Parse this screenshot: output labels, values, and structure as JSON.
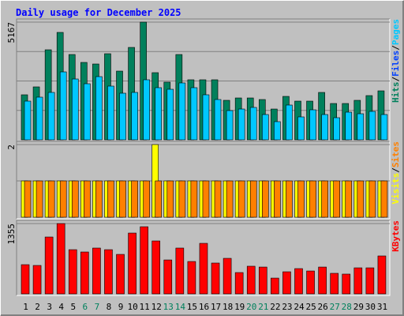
{
  "title": "Daily usage for December 2025",
  "title_color": "#0000ff",
  "chart_data": [
    {
      "type": "bar",
      "ylim": [
        0,
        5167
      ],
      "yticks": [
        5167
      ],
      "legend_separator": "/",
      "legend": [
        {
          "text": "Pages",
          "color": "#00c8ff"
        },
        {
          "text": "Files",
          "color": "#0040ff"
        },
        {
          "text": "Hits",
          "color": "#00805c"
        }
      ],
      "series": [
        {
          "name": "Hits",
          "color": "#00805c",
          "values": [
            1977,
            2324,
            3953,
            4716,
            3745,
            3398,
            3329,
            3780,
            3017,
            4057,
            5167,
            2948,
            2532,
            3745,
            2636,
            2636,
            2636,
            1734,
            1838,
            1838,
            1769,
            1352,
            1907,
            1699,
            1699,
            2081,
            1595,
            1595,
            1734,
            1942,
            2150
          ]
        },
        {
          "name": "Pages",
          "color": "#00c8ff",
          "values": [
            1699,
            1873,
            2081,
            2982,
            2670,
            2462,
            2774,
            2358,
            2046,
            2081,
            2636,
            2289,
            2219,
            2497,
            2289,
            1977,
            1769,
            1283,
            1352,
            1422,
            1110,
            798,
            1526,
            1006,
            1318,
            1110,
            971,
            1214,
            1144,
            1248,
            1110
          ]
        }
      ]
    },
    {
      "type": "bar",
      "ylim": [
        0,
        2
      ],
      "yticks": [
        2
      ],
      "legend_separator": "/",
      "legend": [
        {
          "text": "Sites",
          "color": "#ff8000"
        },
        {
          "text": "Visits",
          "color": "#ffff00"
        }
      ],
      "series": [
        {
          "name": "Visits",
          "color": "#ffff00",
          "values": [
            1,
            1,
            1,
            1,
            1,
            1,
            1,
            1,
            1,
            1,
            1,
            2,
            1,
            1,
            1,
            1,
            1,
            1,
            1,
            1,
            1,
            1,
            1,
            1,
            1,
            1,
            1,
            1,
            1,
            1,
            1
          ]
        },
        {
          "name": "Sites",
          "color": "#ff8000",
          "values": [
            1,
            1,
            1,
            1,
            1,
            1,
            1,
            1,
            1,
            1,
            1,
            1,
            1,
            1,
            1,
            1,
            1,
            1,
            1,
            1,
            1,
            1,
            1,
            1,
            1,
            1,
            1,
            1,
            1,
            1,
            1
          ]
        }
      ]
    },
    {
      "type": "bar",
      "ylim": [
        0,
        1355
      ],
      "yticks": [
        1355
      ],
      "legend": [
        {
          "text": "KBytes",
          "color": "#ff0000"
        }
      ],
      "series": [
        {
          "name": "KBytes",
          "color": "#ff0000",
          "values": [
            563,
            548,
            1096,
            1355,
            852,
            807,
            883,
            852,
            761,
            1172,
            1294,
            1020,
            654,
            883,
            624,
            974,
            594,
            685,
            411,
            533,
            517,
            304,
            426,
            487,
            441,
            517,
            396,
            381,
            502,
            502,
            731
          ]
        }
      ],
      "categories": [
        "1",
        "2",
        "3",
        "4",
        "5",
        "6",
        "7",
        "8",
        "9",
        "10",
        "11",
        "12",
        "13",
        "14",
        "15",
        "16",
        "17",
        "18",
        "19",
        "20",
        "21",
        "22",
        "23",
        "24",
        "25",
        "26",
        "27",
        "28",
        "29",
        "30",
        "31"
      ],
      "category_color": "#000000",
      "highlight_color": "#00805c",
      "highlight_indices": [
        5,
        6,
        12,
        13,
        19,
        20,
        26,
        27
      ]
    }
  ]
}
